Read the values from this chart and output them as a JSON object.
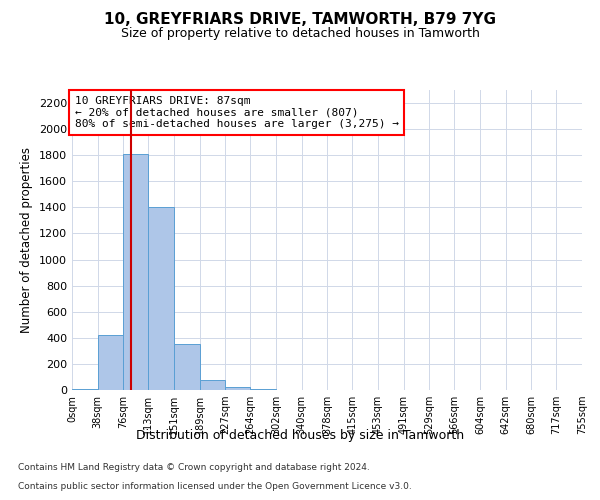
{
  "title_line1": "10, GREYFRIARS DRIVE, TAMWORTH, B79 7YG",
  "title_line2": "Size of property relative to detached houses in Tamworth",
  "xlabel": "Distribution of detached houses by size in Tamworth",
  "ylabel": "Number of detached properties",
  "bar_color": "#aec6e8",
  "bar_edge_color": "#5a9fd4",
  "vline_color": "#cc0000",
  "vline_x": 87,
  "annotation_line1": "10 GREYFRIARS DRIVE: 87sqm",
  "annotation_line2": "← 20% of detached houses are smaller (807)",
  "annotation_line3": "80% of semi-detached houses are larger (3,275) →",
  "footnote1": "Contains HM Land Registry data © Crown copyright and database right 2024.",
  "footnote2": "Contains public sector information licensed under the Open Government Licence v3.0.",
  "bin_edges": [
    0,
    38,
    76,
    113,
    151,
    189,
    227,
    264,
    302,
    340,
    378,
    415,
    453,
    491,
    529,
    566,
    604,
    642,
    680,
    717,
    755
  ],
  "bin_counts": [
    10,
    420,
    1810,
    1400,
    350,
    80,
    25,
    5,
    0,
    0,
    0,
    0,
    0,
    0,
    0,
    0,
    0,
    0,
    0,
    0
  ],
  "ylim": [
    0,
    2300
  ],
  "yticks": [
    0,
    200,
    400,
    600,
    800,
    1000,
    1200,
    1400,
    1600,
    1800,
    2000,
    2200
  ],
  "background_color": "#ffffff",
  "grid_color": "#d0d8e8"
}
